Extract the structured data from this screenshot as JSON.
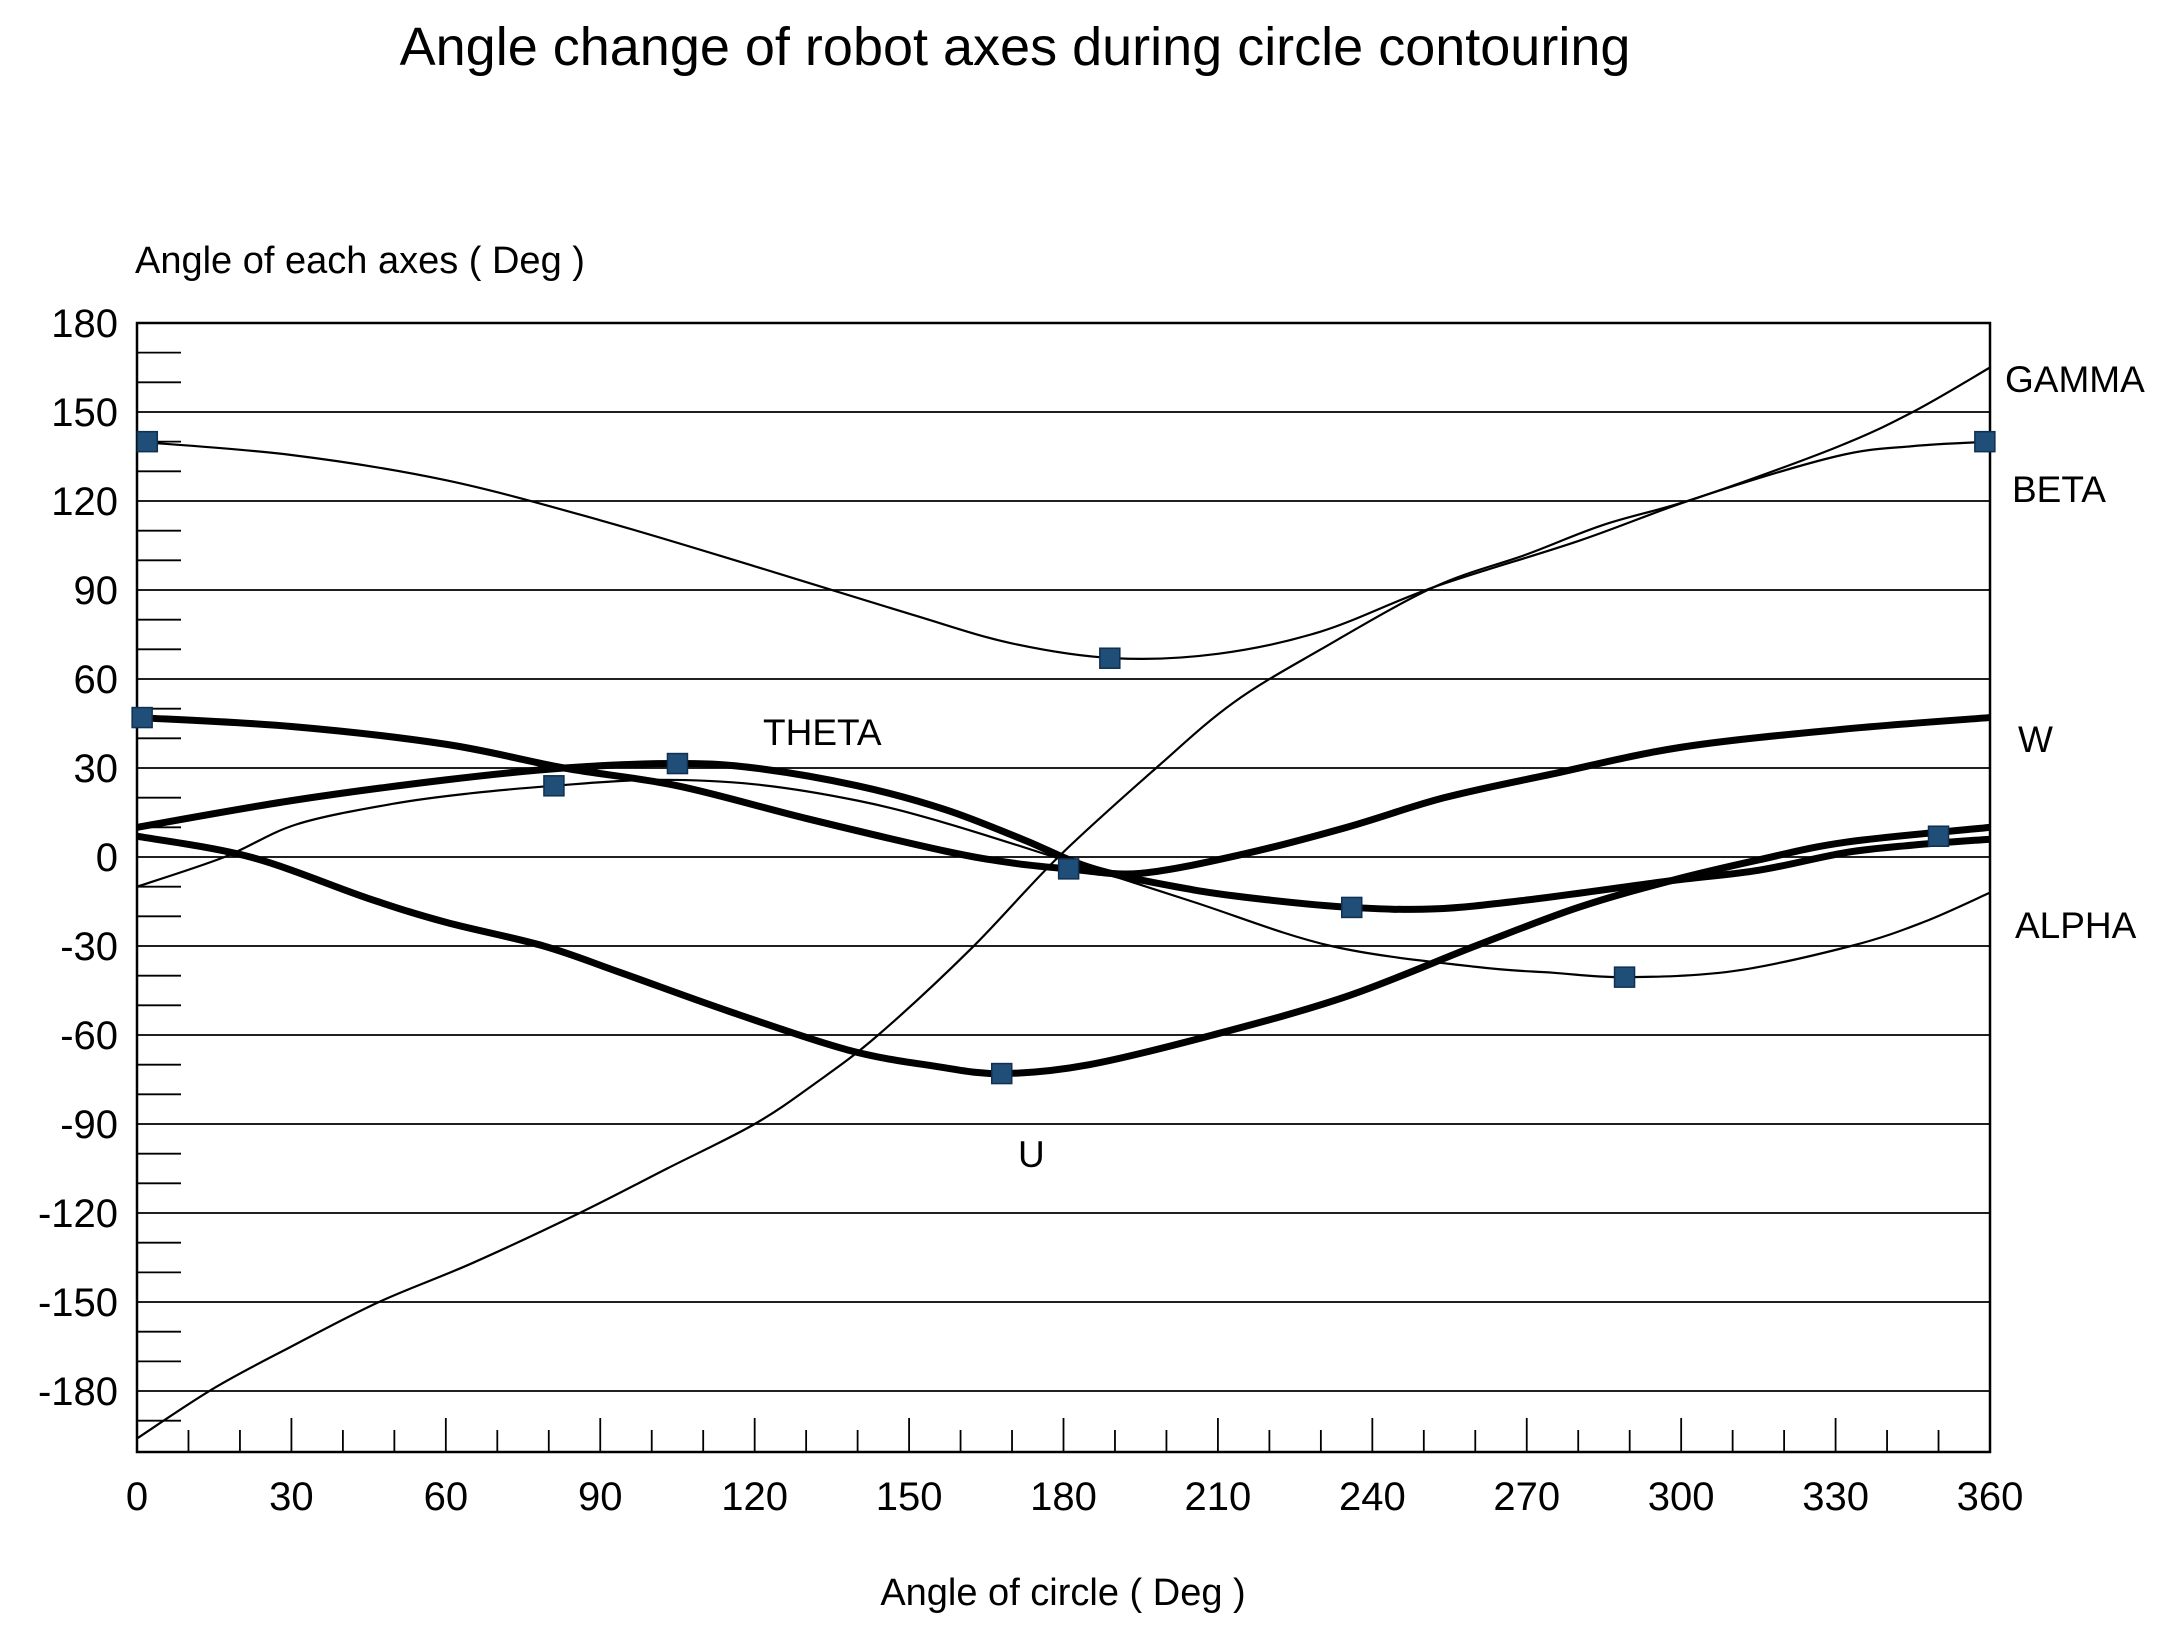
{
  "page": {
    "background": "#ffffff"
  },
  "chart_data": {
    "type": "line",
    "title": "Angle change of robot axes during circle contouring",
    "xlabel": "Angle of circle ( Deg )",
    "ylabel": "Angle of each axes ( Deg )",
    "xlim": [
      0,
      360
    ],
    "ylim": [
      -200,
      180
    ],
    "x_ticks": [
      0,
      30,
      60,
      90,
      120,
      150,
      180,
      210,
      240,
      270,
      300,
      330,
      360
    ],
    "y_ticks": [
      180,
      150,
      120,
      90,
      60,
      30,
      0,
      -30,
      -60,
      -90,
      -120,
      -150,
      -180
    ],
    "x_minor_step": 10,
    "y_minor_step": 10,
    "grid": "horizontal-major",
    "legend_position": "inline-labels",
    "line_color": "#000000",
    "marker_color": "#1f4e79",
    "series": [
      {
        "name": "BETA",
        "weight": "thin",
        "points": [
          [
            0,
            140
          ],
          [
            30,
            135.5
          ],
          [
            60,
            127
          ],
          [
            90,
            113.5
          ],
          [
            120,
            98
          ],
          [
            150,
            82
          ],
          [
            170,
            72
          ],
          [
            190,
            67
          ],
          [
            210,
            68.5
          ],
          [
            230,
            76
          ],
          [
            252,
            91
          ],
          [
            280,
            106.5
          ],
          [
            303,
            121
          ],
          [
            330,
            135
          ],
          [
            345,
            138.5
          ],
          [
            360,
            140
          ]
        ],
        "markers": [
          [
            2,
            140
          ],
          [
            189,
            67
          ],
          [
            359,
            140
          ]
        ]
      },
      {
        "name": "GAMMA",
        "weight": "thin",
        "points": [
          [
            0,
            -196
          ],
          [
            15,
            -179
          ],
          [
            30,
            -165
          ],
          [
            47,
            -150
          ],
          [
            65,
            -137
          ],
          [
            86,
            -120
          ],
          [
            103,
            -105
          ],
          [
            120,
            -90
          ],
          [
            132,
            -76
          ],
          [
            144,
            -60
          ],
          [
            162,
            -31
          ],
          [
            179,
            0
          ],
          [
            198,
            30
          ],
          [
            213,
            52
          ],
          [
            230,
            70
          ],
          [
            252,
            91
          ],
          [
            270,
            102
          ],
          [
            285,
            112
          ],
          [
            303,
            121
          ],
          [
            330,
            138
          ],
          [
            345,
            150
          ],
          [
            360,
            165
          ]
        ],
        "markers": []
      },
      {
        "name": "ALPHA",
        "weight": "thin",
        "points": [
          [
            0,
            -10
          ],
          [
            17,
            0
          ],
          [
            31,
            11
          ],
          [
            50,
            18
          ],
          [
            65,
            21.5
          ],
          [
            81,
            24
          ],
          [
            100,
            26
          ],
          [
            120,
            24.5
          ],
          [
            140,
            19
          ],
          [
            157,
            11.5
          ],
          [
            180,
            -1
          ],
          [
            205,
            -15
          ],
          [
            232,
            -30
          ],
          [
            260,
            -37
          ],
          [
            275,
            -39
          ],
          [
            289,
            -40.5
          ],
          [
            310,
            -38.5
          ],
          [
            333,
            -30
          ],
          [
            347,
            -22
          ],
          [
            360,
            -12
          ]
        ],
        "markers": [
          [
            81,
            24
          ],
          [
            289,
            -40.5
          ]
        ]
      },
      {
        "name": "W",
        "weight": "thick",
        "points": [
          [
            0,
            47
          ],
          [
            30,
            44
          ],
          [
            60,
            38
          ],
          [
            83,
            30
          ],
          [
            105,
            24
          ],
          [
            130,
            13
          ],
          [
            157,
            2
          ],
          [
            170,
            -2
          ],
          [
            181,
            -4
          ],
          [
            195,
            -5.5
          ],
          [
            215,
            1
          ],
          [
            235,
            10
          ],
          [
            254,
            20
          ],
          [
            275,
            28
          ],
          [
            300,
            37
          ],
          [
            331,
            43
          ],
          [
            360,
            47
          ]
        ],
        "markers": [
          [
            1,
            47
          ],
          [
            181,
            -4
          ]
        ]
      },
      {
        "name": "THETA",
        "weight": "thick",
        "points": [
          [
            0,
            10
          ],
          [
            30,
            19
          ],
          [
            60,
            26
          ],
          [
            83,
            30
          ],
          [
            105,
            31.5
          ],
          [
            120,
            30
          ],
          [
            140,
            24
          ],
          [
            157,
            16
          ],
          [
            172,
            6
          ],
          [
            186,
            -4
          ],
          [
            205,
            -11
          ],
          [
            220,
            -14.5
          ],
          [
            236,
            -17
          ],
          [
            252,
            -17.5
          ],
          [
            270,
            -14.5
          ],
          [
            298,
            -8
          ],
          [
            315,
            -4.5
          ],
          [
            332,
            1.5
          ],
          [
            345,
            4
          ],
          [
            360,
            6
          ]
        ],
        "markers": [
          [
            105,
            31.5
          ],
          [
            236,
            -17
          ]
        ]
      },
      {
        "name": "U",
        "weight": "thick",
        "points": [
          [
            0,
            7
          ],
          [
            22,
            0
          ],
          [
            45,
            -14
          ],
          [
            60,
            -22
          ],
          [
            79,
            -30
          ],
          [
            94,
            -39
          ],
          [
            115,
            -52
          ],
          [
            138,
            -65
          ],
          [
            155,
            -70.5
          ],
          [
            168,
            -73
          ],
          [
            185,
            -70
          ],
          [
            209,
            -60
          ],
          [
            235,
            -47
          ],
          [
            260,
            -30
          ],
          [
            280,
            -17
          ],
          [
            298,
            -8
          ],
          [
            315,
            -1
          ],
          [
            332,
            5
          ],
          [
            360,
            10
          ]
        ],
        "markers": [
          [
            168,
            -73
          ],
          [
            350,
            7
          ]
        ]
      }
    ]
  }
}
